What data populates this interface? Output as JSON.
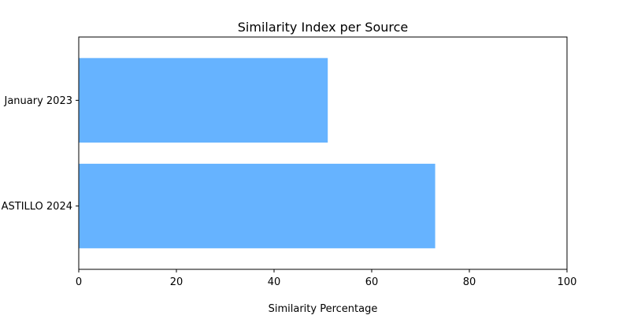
{
  "chart_data": {
    "type": "bar",
    "orientation": "horizontal",
    "title": "Similarity Index per Source",
    "xlabel": "Similarity Percentage",
    "ylabel": "",
    "categories": [
      "January 2023",
      "ASTILLO 2024"
    ],
    "values": [
      51,
      73
    ],
    "xlim": [
      0,
      100
    ],
    "xticks": [
      0,
      20,
      40,
      60,
      80,
      100
    ],
    "bar_color": "#66b3ff",
    "grid": false,
    "legend": "none"
  }
}
